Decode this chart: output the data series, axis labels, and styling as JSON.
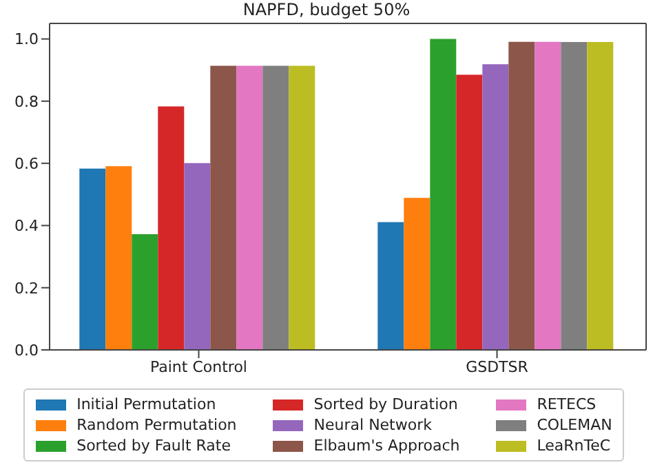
{
  "chart_data": {
    "type": "bar",
    "title": "NAPFD, budget 50%",
    "categories": [
      "Paint Control",
      "GSDTSR"
    ],
    "series": [
      {
        "name": "Initial Permutation",
        "color": "#1f77b4",
        "values": [
          0.583,
          0.411
        ]
      },
      {
        "name": "Random Permutation",
        "color": "#ff7f0e",
        "values": [
          0.591,
          0.489
        ]
      },
      {
        "name": "Sorted by Fault Rate",
        "color": "#2ca02c",
        "values": [
          0.372,
          1.0
        ]
      },
      {
        "name": "Sorted by Duration",
        "color": "#d62728",
        "values": [
          0.783,
          0.885
        ]
      },
      {
        "name": "Neural Network",
        "color": "#9467bd",
        "values": [
          0.601,
          0.919
        ]
      },
      {
        "name": "Elbaum's Approach",
        "color": "#8c564b",
        "values": [
          0.914,
          0.991
        ]
      },
      {
        "name": "RETECS",
        "color": "#e377c2",
        "values": [
          0.914,
          0.991
        ]
      },
      {
        "name": "COLEMAN",
        "color": "#7f7f7f",
        "values": [
          0.914,
          0.99
        ]
      },
      {
        "name": "LeaRnTeC",
        "color": "#bcbd22",
        "values": [
          0.914,
          0.99
        ]
      }
    ],
    "ylim": [
      0,
      1.05
    ],
    "yticks": [
      {
        "value": 0,
        "label": "0.0"
      },
      0.2,
      0.4,
      0.6,
      0.8,
      {
        "value": 1,
        "label": "1.0"
      }
    ],
    "grid": false,
    "legend": "bottom"
  }
}
